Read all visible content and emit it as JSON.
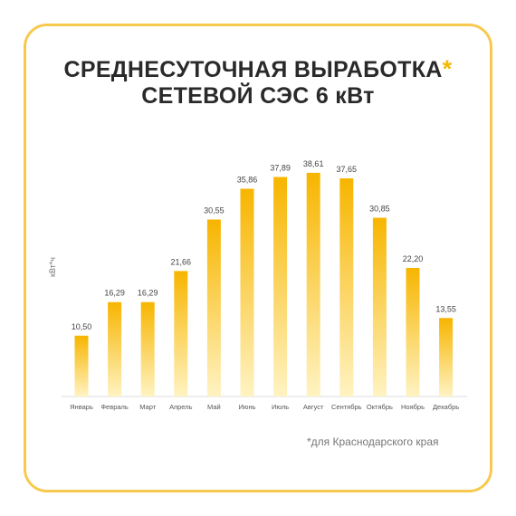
{
  "title": {
    "line1": "СРЕДНЕСУТОЧНАЯ ВЫРАБОТКА",
    "star": "*",
    "line2": "СЕТЕВОЙ СЭС 6 кВт"
  },
  "footnote": "*для Краснодарского края",
  "colors": {
    "bar_top": "#f7b500",
    "bar_bottom": "#fff3c2",
    "frame": "#f7c94f",
    "text": "#2a2a2a"
  },
  "chart_data": {
    "type": "bar",
    "ylabel": "кВт*ч",
    "xlabel": "",
    "ylim": [
      0,
      45
    ],
    "categories": [
      "Январь",
      "Февраль",
      "Март",
      "Апрель",
      "Май",
      "Июнь",
      "Июль",
      "Август",
      "Сентябрь",
      "Октябрь",
      "Ноябрь",
      "Декабрь"
    ],
    "values": [
      10.5,
      16.29,
      16.29,
      21.66,
      30.55,
      35.86,
      37.89,
      38.61,
      37.65,
      30.85,
      22.2,
      13.55
    ],
    "value_labels": [
      "10,50",
      "16,29",
      "16,29",
      "21,66",
      "30,55",
      "35,86",
      "37,89",
      "38,61",
      "37,65",
      "30,85",
      "22,20",
      "13,55"
    ],
    "grid": false,
    "legend": "none"
  }
}
